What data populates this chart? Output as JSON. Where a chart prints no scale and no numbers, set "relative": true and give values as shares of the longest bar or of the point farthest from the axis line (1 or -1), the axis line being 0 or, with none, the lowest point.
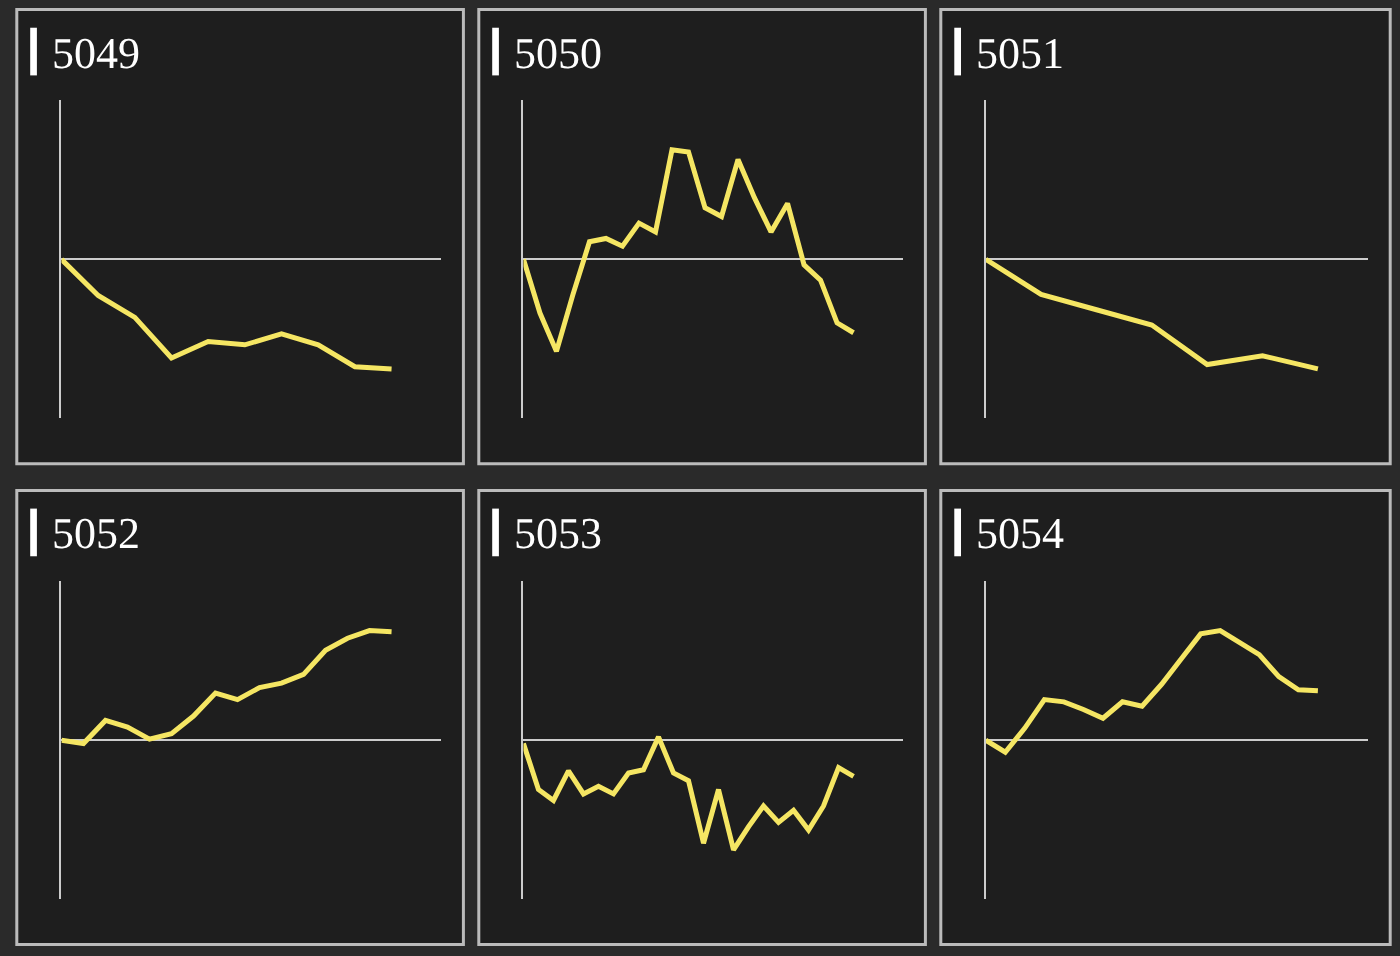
{
  "chart_data": [
    {
      "type": "line",
      "title": "5049",
      "color": "#f5e663",
      "relative": true,
      "categories": [
        null,
        null,
        null,
        null,
        null,
        null,
        null,
        null,
        null,
        null
      ],
      "values": [
        0,
        -0.33,
        -0.53,
        -0.9,
        -0.75,
        -0.78,
        -0.68,
        -0.78,
        -0.98,
        -1.0
      ]
    },
    {
      "type": "line",
      "title": "5050",
      "color": "#f5e663",
      "relative": true,
      "categories": [
        null,
        null,
        null,
        null,
        null,
        null,
        null,
        null,
        null,
        null,
        null,
        null,
        null,
        null,
        null,
        null,
        null,
        null,
        null,
        null,
        null
      ],
      "values": [
        0,
        -0.49,
        -0.84,
        -0.32,
        0.16,
        0.19,
        0.12,
        0.33,
        0.25,
        1.0,
        0.98,
        0.47,
        0.39,
        0.91,
        0.56,
        0.25,
        0.51,
        -0.05,
        -0.19,
        -0.58,
        -0.67
      ]
    },
    {
      "type": "line",
      "title": "5051",
      "color": "#f5e663",
      "relative": true,
      "categories": [
        null,
        null,
        null,
        null,
        null,
        null,
        null
      ],
      "values": [
        0,
        -0.32,
        -0.46,
        -0.6,
        -0.96,
        -0.88,
        -1.0
      ]
    },
    {
      "type": "line",
      "title": "5052",
      "color": "#f5e663",
      "relative": true,
      "categories": [
        null,
        null,
        null,
        null,
        null,
        null,
        null,
        null,
        null,
        null,
        null,
        null,
        null,
        null,
        null,
        null
      ],
      "values": [
        0,
        -0.03,
        0.18,
        0.12,
        0.01,
        0.06,
        0.22,
        0.43,
        0.37,
        0.48,
        0.52,
        0.6,
        0.82,
        0.93,
        1.0,
        0.99
      ]
    },
    {
      "type": "line",
      "title": "5053",
      "color": "#f5e663",
      "relative": true,
      "categories": [
        null,
        null,
        null,
        null,
        null,
        null,
        null,
        null,
        null,
        null,
        null,
        null,
        null,
        null,
        null,
        null,
        null,
        null,
        null,
        null,
        null,
        null,
        null
      ],
      "values": [
        -0.03,
        -0.45,
        -0.55,
        -0.28,
        -0.49,
        -0.42,
        -0.49,
        -0.3,
        -0.27,
        0.03,
        -0.3,
        -0.37,
        -0.94,
        -0.45,
        -1.0,
        -0.79,
        -0.6,
        -0.75,
        -0.64,
        -0.82,
        -0.6,
        -0.25,
        -0.33
      ]
    },
    {
      "type": "line",
      "title": "5054",
      "color": "#f5e663",
      "relative": true,
      "categories": [
        null,
        null,
        null,
        null,
        null,
        null,
        null,
        null,
        null,
        null,
        null,
        null,
        null,
        null,
        null,
        null,
        null,
        null
      ],
      "values": [
        0,
        -0.11,
        0.11,
        0.37,
        0.35,
        0.28,
        0.2,
        0.35,
        0.31,
        0.51,
        0.74,
        0.97,
        1.0,
        0.89,
        0.78,
        0.58,
        0.46,
        0.45
      ]
    }
  ]
}
